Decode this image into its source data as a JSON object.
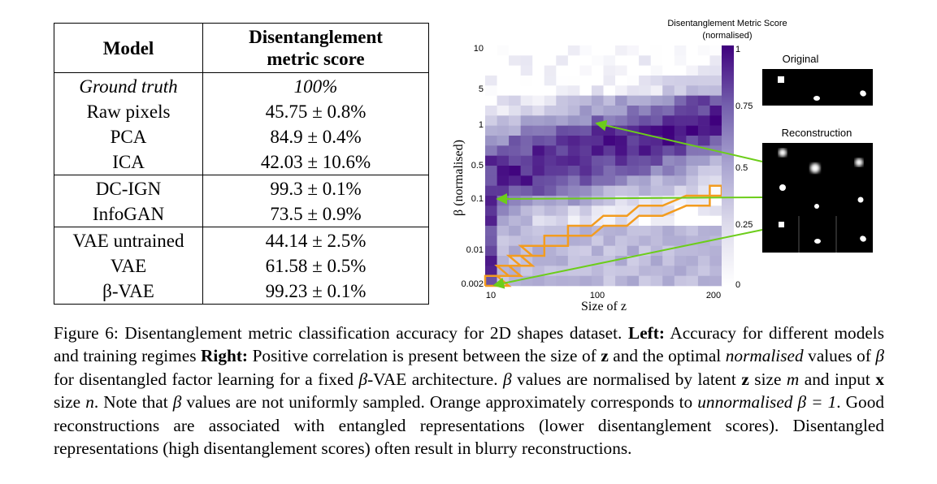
{
  "table": {
    "headers": [
      "Model",
      "Disentanglement metric score"
    ],
    "header_lines": [
      "Disentanglement",
      "metric score"
    ],
    "groups": [
      [
        {
          "model": "Ground truth",
          "score": "100%",
          "style": "italic"
        },
        {
          "model": "Raw pixels",
          "score": "45.75 ± 0.8%"
        },
        {
          "model": "PCA",
          "score": "84.9 ± 0.4%"
        },
        {
          "model": "ICA",
          "score": "42.03 ± 10.6%"
        }
      ],
      [
        {
          "model": "DC-IGN",
          "score": "99.3 ± 0.1%",
          "style": "bold-score"
        },
        {
          "model": "InfoGAN",
          "score": "73.5 ± 0.9%"
        }
      ],
      [
        {
          "model": "VAE untrained",
          "score": "44.14 ± 2.5%"
        },
        {
          "model": "VAE",
          "score": "61.58 ± 0.5%"
        },
        {
          "model": "β-VAE",
          "score": "99.23 ± 0.1%",
          "style": "bold"
        }
      ]
    ]
  },
  "chart_data": {
    "type": "heatmap",
    "title": "Disentanglement Metric Score",
    "subtitle": "(normalised)",
    "xlabel": "Size of z",
    "ylabel": "β (normalised)",
    "x_ticks": [
      "10",
      "100",
      "200"
    ],
    "y_ticks": [
      "10",
      "5",
      "1",
      "0.5",
      "0.1",
      "0.01",
      "0.002"
    ],
    "colorbar_ticks": [
      "1",
      "0.75",
      "0.5",
      "0.25",
      "0"
    ],
    "colormap": [
      "#ffffff",
      "#cfcde5",
      "#9e9ac8",
      "#6a51a3",
      "#3f007d"
    ],
    "n_cols": 20,
    "n_rows": 24,
    "orange_boundary": "unnormalised β = 1",
    "orange_color": "#f39c1f",
    "arrow_color": "#6ccd1a"
  },
  "panels": {
    "original_label": "Original",
    "reconstruction_label": "Reconstruction"
  },
  "caption": {
    "figure_label": "Figure 6:",
    "s1": " Disentanglement metric classification accuracy for 2D shapes dataset. ",
    "left_label": "Left:",
    "s2": " Accuracy for different models and training regimes ",
    "right_label": "Right:",
    "s3": " Positive correlation is present between the size of ",
    "z1": "z",
    "s4": " and the optimal ",
    "normalised": "normalised",
    "s5": " values of ",
    "beta1": "β",
    "s6": " for disentangled factor learning for a fixed ",
    "beta2": "β",
    "s7": "-VAE architecture. ",
    "beta3": "β",
    "s8": " values are normalised by latent ",
    "z2": "z",
    "s9": " size ",
    "m": "m",
    "s10": " and input ",
    "x": "x",
    "s11": " size ",
    "n": "n",
    "s12": ". Note that ",
    "beta4": "β",
    "s13": " values are not uniformly sampled. Orange approximately corresponds to ",
    "unnormalised": "unnormalised",
    "s14": " ",
    "beta5": "β = 1",
    "s15": ". Good reconstructions are associated with entangled representations (lower disentanglement scores). Disentangled representations (high disentanglement scores) often result in blurry reconstructions."
  }
}
